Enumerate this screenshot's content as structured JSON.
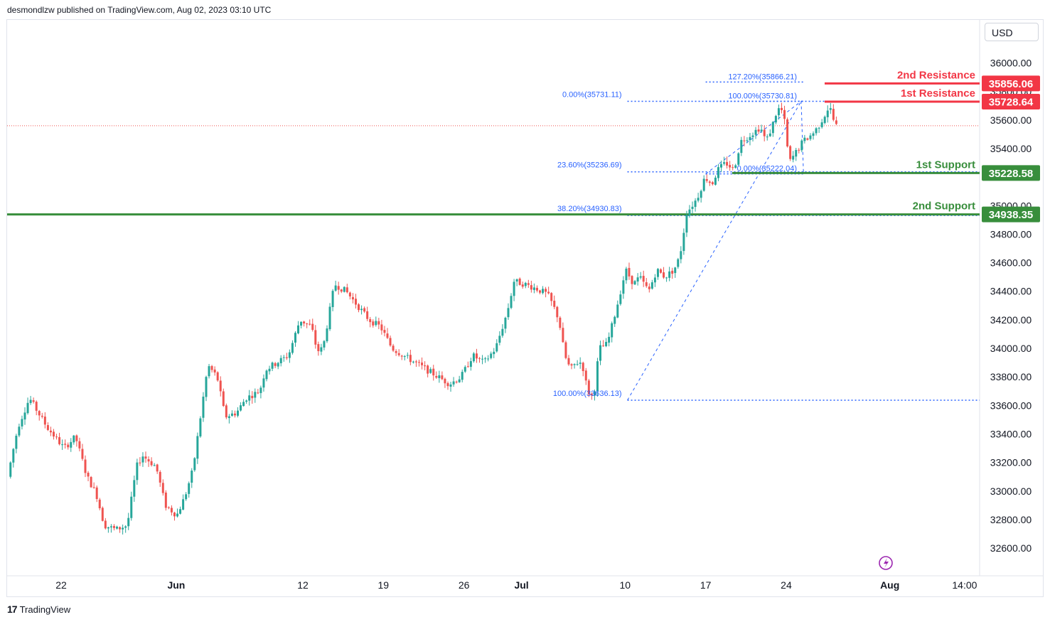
{
  "header": {
    "published_text": "desmondlzw published on TradingView.com, Aug 02, 2023 03:10 UTC"
  },
  "footer": {
    "logo_mark": "17",
    "logo_text": "TradingView"
  },
  "toolbar": {
    "currency": "USD"
  },
  "colors": {
    "up": "#26a69a",
    "down": "#ef5350",
    "resistance": "#f23645",
    "support": "#388e3c",
    "fib": "#2962ff"
  },
  "chart_data": {
    "type": "candlestick",
    "title": "",
    "ylim": [
      32500,
      36150
    ],
    "y_ticks": [
      32600,
      32800,
      33000,
      33200,
      33400,
      33600,
      33800,
      34000,
      34200,
      34400,
      34600,
      34800,
      35000,
      35200,
      35400,
      35600,
      35800,
      36000
    ],
    "y_tick_labels": [
      "32600.00",
      "32800.00",
      "33000.00",
      "33200.00",
      "33400.00",
      "33600.00",
      "33800.00",
      "34000.00",
      "34200.00",
      "34400.00",
      "34600.00",
      "34800.00",
      "35000.00",
      "35200.00",
      "35400.00",
      "35600.00",
      "35800.00",
      "36000.00"
    ],
    "x_ticks": [
      {
        "label": "22",
        "day": 0
      },
      {
        "label": "Jun",
        "day": 10
      },
      {
        "label": "12",
        "day": 21
      },
      {
        "label": "19",
        "day": 28
      },
      {
        "label": "26",
        "day": 35
      },
      {
        "label": "Jul",
        "day": 40
      },
      {
        "label": "10",
        "day": 49
      },
      {
        "label": "17",
        "day": 56
      },
      {
        "label": "24",
        "day": 63
      },
      {
        "label": "Aug",
        "day": 72
      },
      {
        "label": "14:00",
        "day": 78.5
      }
    ],
    "candle_anchors": [
      [
        -4.4,
        33100
      ],
      [
        -3.5,
        33450
      ],
      [
        -2.5,
        33650
      ],
      [
        -1,
        33450
      ],
      [
        0.5,
        33300
      ],
      [
        1.5,
        33380
      ],
      [
        2.5,
        33100
      ],
      [
        3.3,
        32980
      ],
      [
        4,
        32760
      ],
      [
        5,
        32730
      ],
      [
        6,
        32760
      ],
      [
        6.8,
        33170
      ],
      [
        7.3,
        33250
      ],
      [
        8.5,
        33170
      ],
      [
        9.3,
        32900
      ],
      [
        10.3,
        32830
      ],
      [
        11,
        32960
      ],
      [
        11.7,
        33150
      ],
      [
        12.5,
        33600
      ],
      [
        13,
        33880
      ],
      [
        13.8,
        33800
      ],
      [
        14.5,
        33520
      ],
      [
        15.5,
        33550
      ],
      [
        16.3,
        33650
      ],
      [
        17.5,
        33700
      ],
      [
        18,
        33850
      ],
      [
        19,
        33900
      ],
      [
        20,
        33950
      ],
      [
        21,
        34200
      ],
      [
        22,
        34150
      ],
      [
        22.5,
        33980
      ],
      [
        23,
        34000
      ],
      [
        24,
        34450
      ],
      [
        25,
        34400
      ],
      [
        26,
        34300
      ],
      [
        27,
        34200
      ],
      [
        28,
        34150
      ],
      [
        29,
        34000
      ],
      [
        30,
        33950
      ],
      [
        31,
        33900
      ],
      [
        32,
        33850
      ],
      [
        33,
        33800
      ],
      [
        34,
        33750
      ],
      [
        35,
        33800
      ],
      [
        36,
        33950
      ],
      [
        37,
        33900
      ],
      [
        38,
        34000
      ],
      [
        38.6,
        34150
      ],
      [
        39,
        34250
      ],
      [
        39.6,
        34470
      ],
      [
        40.5,
        34450
      ],
      [
        41.5,
        34420
      ],
      [
        42.5,
        34380
      ],
      [
        43,
        34300
      ],
      [
        43.5,
        34200
      ],
      [
        44,
        33950
      ],
      [
        44.5,
        33850
      ],
      [
        45,
        33900
      ],
      [
        45.5,
        33900
      ],
      [
        46,
        33700
      ],
      [
        46.5,
        33650
      ],
      [
        47,
        34000
      ],
      [
        47.7,
        34030
      ],
      [
        48.5,
        34280
      ],
      [
        49.3,
        34550
      ],
      [
        50,
        34450
      ],
      [
        50.5,
        34500
      ],
      [
        51.3,
        34400
      ],
      [
        52,
        34550
      ],
      [
        52.7,
        34500
      ],
      [
        53.5,
        34550
      ],
      [
        54,
        34640
      ],
      [
        54.6,
        34950
      ],
      [
        55.5,
        35050
      ],
      [
        56.2,
        35200
      ],
      [
        56.8,
        35150
      ],
      [
        57.3,
        35250
      ],
      [
        58,
        35300
      ],
      [
        58.7,
        35250
      ],
      [
        59.3,
        35450
      ],
      [
        60.2,
        35500
      ],
      [
        61,
        35550
      ],
      [
        61.5,
        35450
      ],
      [
        62,
        35550
      ],
      [
        62.5,
        35680
      ],
      [
        63,
        35660
      ],
      [
        63.5,
        35300
      ],
      [
        63.9,
        35350
      ],
      [
        64.7,
        35450
      ],
      [
        65.5,
        35500
      ],
      [
        66,
        35550
      ],
      [
        66.5,
        35620
      ],
      [
        67,
        35700
      ],
      [
        67.5,
        35560
      ]
    ],
    "overlay_lines": [
      {
        "name": "2nd Resistance",
        "value": 35856.06,
        "label": "35856.06",
        "role": "resistance"
      },
      {
        "name": "1st Resistance",
        "value": 35728.64,
        "label": "35728.64",
        "role": "resistance"
      },
      {
        "name": "1st Support",
        "value": 35228.58,
        "label": "35228.58",
        "role": "support"
      },
      {
        "name": "2nd Support",
        "value": 34938.35,
        "label": "34938.35",
        "role": "support"
      }
    ],
    "current_price_line": 35560,
    "fib_retracement": {
      "anchor_low": {
        "day": 49.2,
        "value": 33636.13
      },
      "anchor_high": {
        "day": 64.3,
        "value": 35731.11
      },
      "levels": [
        {
          "label": "0.00%(35731.11)",
          "value": 35731.11
        },
        {
          "label": "23.60%(35236.69)",
          "value": 35236.69
        },
        {
          "label": "38.20%(34930.83)",
          "value": 34930.83
        },
        {
          "label": "100.00%(33636.13)",
          "value": 33636.13
        }
      ]
    },
    "fib_extension": {
      "points": [
        [
          56,
          35222.04
        ],
        [
          64.3,
          35730.81
        ],
        [
          64.5,
          35220
        ]
      ],
      "levels": [
        {
          "label": "127.20%(35866.21)",
          "value": 35866.21
        },
        {
          "label": "100.00%(35730.81)",
          "value": 35730.81
        },
        {
          "label": "0.00%(35222.04)",
          "value": 35222.04
        }
      ]
    }
  }
}
